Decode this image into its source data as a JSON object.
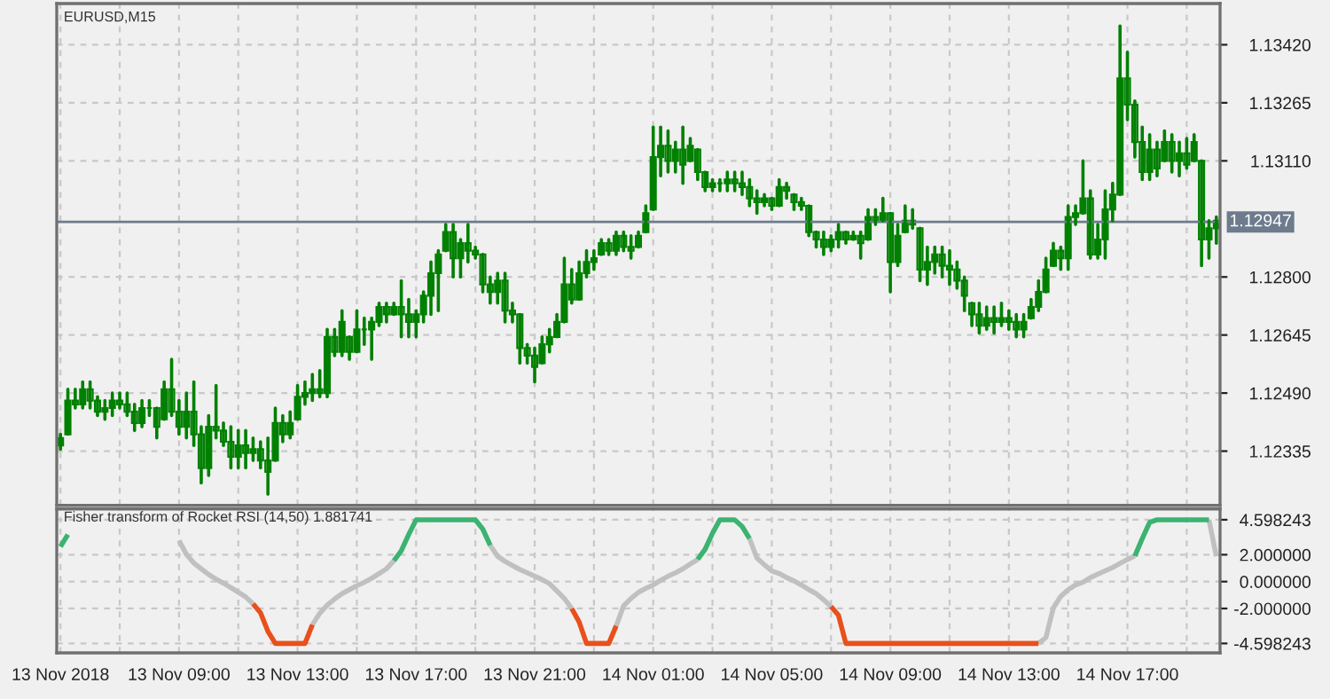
{
  "chart_data": [
    {
      "type": "candlestick",
      "title": "EURUSD,M15",
      "color": "#008000",
      "tick_labels": "y",
      "grid": true,
      "categories": [
        null,
        null,
        null,
        null,
        null,
        null,
        null,
        null,
        null,
        null,
        null,
        null,
        null,
        null,
        null,
        null,
        null,
        null,
        null,
        null,
        null,
        null,
        null,
        null,
        null,
        null,
        null,
        null,
        null,
        null,
        null,
        null,
        null,
        null,
        null,
        null,
        null,
        null,
        null,
        null,
        null,
        null,
        null,
        null,
        null,
        null,
        null,
        null,
        null,
        null,
        null,
        null,
        null,
        null,
        null,
        null,
        null,
        null,
        null,
        null,
        null,
        null,
        null,
        null,
        null,
        null,
        null,
        null,
        null,
        null,
        null,
        null,
        null,
        null,
        null,
        null,
        null,
        null,
        null,
        null,
        null,
        null,
        null,
        null,
        null,
        null,
        null,
        null,
        null,
        null,
        null,
        null,
        null,
        null,
        null,
        null,
        null,
        null,
        null,
        null,
        null,
        null,
        null,
        null,
        null,
        null,
        null,
        null,
        null,
        null,
        null,
        null,
        null,
        null,
        null,
        null,
        null,
        null,
        null,
        null,
        null,
        null,
        null,
        null,
        null,
        null,
        null,
        null,
        null,
        null,
        null,
        null,
        null,
        null,
        null,
        null,
        null,
        null,
        null,
        null,
        null,
        null,
        null,
        null,
        null,
        null,
        null,
        null,
        null,
        null,
        null,
        null,
        null,
        null,
        null,
        null,
        null
      ],
      "ohlc": [
        [
          1.1235,
          1.1238,
          1.1234,
          1.1237
        ],
        [
          1.1238,
          1.125,
          1.1238,
          1.1247
        ],
        [
          1.1247,
          1.125,
          1.1245,
          1.1246
        ],
        [
          1.1246,
          1.1252,
          1.1245,
          1.125
        ],
        [
          1.125,
          1.1252,
          1.1245,
          1.1247
        ],
        [
          1.1247,
          1.1248,
          1.1243,
          1.1244
        ],
        [
          1.1244,
          1.1247,
          1.1242,
          1.1245
        ],
        [
          1.1245,
          1.1249,
          1.1243,
          1.1247
        ],
        [
          1.1247,
          1.1249,
          1.1245,
          1.1246
        ],
        [
          1.1246,
          1.1249,
          1.1243,
          1.1244
        ],
        [
          1.1244,
          1.1246,
          1.1239,
          1.1241
        ],
        [
          1.1241,
          1.1247,
          1.124,
          1.1245
        ],
        [
          1.1245,
          1.1247,
          1.1243,
          1.1245
        ],
        [
          1.1245,
          1.1245,
          1.1237,
          1.124
        ],
        [
          1.1242,
          1.1252,
          1.1242,
          1.125
        ],
        [
          1.125,
          1.1258,
          1.1243,
          1.1244
        ],
        [
          1.1244,
          1.1247,
          1.1238,
          1.124
        ],
        [
          1.124,
          1.1249,
          1.1237,
          1.1244
        ],
        [
          1.1244,
          1.1252,
          1.1235,
          1.1238
        ],
        [
          1.1238,
          1.124,
          1.1225,
          1.1229
        ],
        [
          1.1229,
          1.1243,
          1.1227,
          1.124
        ],
        [
          1.124,
          1.1251,
          1.1237,
          1.1239
        ],
        [
          1.1239,
          1.1241,
          1.1235,
          1.1236
        ],
        [
          1.1236,
          1.124,
          1.1229,
          1.1232
        ],
        [
          1.1232,
          1.1239,
          1.1229,
          1.1235
        ],
        [
          1.1235,
          1.1239,
          1.1229,
          1.1233
        ],
        [
          1.1233,
          1.1237,
          1.1231,
          1.1234
        ],
        [
          1.1234,
          1.1236,
          1.1229,
          1.1231
        ],
        [
          1.1231,
          1.1237,
          1.1222,
          1.1228
        ],
        [
          1.1231,
          1.1245,
          1.1231,
          1.1241
        ],
        [
          1.1241,
          1.1243,
          1.1236,
          1.1238
        ],
        [
          1.1238,
          1.1244,
          1.1237,
          1.1241
        ],
        [
          1.1242,
          1.1251,
          1.1242,
          1.1248
        ],
        [
          1.1248,
          1.1252,
          1.1246,
          1.1249
        ],
        [
          1.1249,
          1.1254,
          1.1247,
          1.125
        ],
        [
          1.125,
          1.1255,
          1.1248,
          1.1249
        ],
        [
          1.1249,
          1.1266,
          1.1248,
          1.1264
        ],
        [
          1.1264,
          1.1266,
          1.1259,
          1.126
        ],
        [
          1.126,
          1.1271,
          1.1259,
          1.1268
        ],
        [
          1.1264,
          1.1264,
          1.1258,
          1.126
        ],
        [
          1.126,
          1.1271,
          1.126,
          1.1266
        ],
        [
          1.1266,
          1.1269,
          1.1262,
          1.1266
        ],
        [
          1.1266,
          1.1269,
          1.1258,
          1.1268
        ],
        [
          1.1268,
          1.1273,
          1.1267,
          1.1272
        ],
        [
          1.1272,
          1.1273,
          1.1268,
          1.127
        ],
        [
          1.127,
          1.1273,
          1.127,
          1.1272
        ],
        [
          1.1272,
          1.1279,
          1.1264,
          1.127
        ],
        [
          1.127,
          1.1274,
          1.1264,
          1.1268
        ],
        [
          1.1268,
          1.1271,
          1.1264,
          1.127
        ],
        [
          1.127,
          1.1276,
          1.1268,
          1.1275
        ],
        [
          1.1275,
          1.1284,
          1.127,
          1.1281
        ],
        [
          1.1281,
          1.1287,
          1.1271,
          1.1286
        ],
        [
          1.1287,
          1.1294,
          1.1287,
          1.1292
        ],
        [
          1.1292,
          1.1294,
          1.128,
          1.1285
        ],
        [
          1.1285,
          1.129,
          1.128,
          1.1289
        ],
        [
          1.1289,
          1.1294,
          1.1284,
          1.1287
        ],
        [
          1.1287,
          1.1288,
          1.1285,
          1.1286
        ],
        [
          1.1286,
          1.1286,
          1.1276,
          1.1278
        ],
        [
          1.1278,
          1.128,
          1.1273,
          1.1276
        ],
        [
          1.1276,
          1.1281,
          1.1273,
          1.1279
        ],
        [
          1.1279,
          1.1281,
          1.1268,
          1.1271
        ],
        [
          1.1271,
          1.1273,
          1.1268,
          1.127
        ],
        [
          1.127,
          1.127,
          1.1257,
          1.1261
        ],
        [
          1.1261,
          1.1262,
          1.1257,
          1.1259
        ],
        [
          1.1259,
          1.1261,
          1.1252,
          1.1256
        ],
        [
          1.1257,
          1.1264,
          1.1257,
          1.1262
        ],
        [
          1.1262,
          1.1266,
          1.126,
          1.1264
        ],
        [
          1.1264,
          1.127,
          1.1264,
          1.1268
        ],
        [
          1.1268,
          1.1285,
          1.1268,
          1.1278
        ],
        [
          1.1278,
          1.1282,
          1.1273,
          1.1274
        ],
        [
          1.1274,
          1.1284,
          1.1274,
          1.1281
        ],
        [
          1.1281,
          1.1287,
          1.128,
          1.1284
        ],
        [
          1.1284,
          1.1287,
          1.1282,
          1.1285
        ],
        [
          1.1286,
          1.129,
          1.1286,
          1.1289
        ],
        [
          1.1289,
          1.129,
          1.1286,
          1.1287
        ],
        [
          1.1287,
          1.1292,
          1.1286,
          1.1291
        ],
        [
          1.1291,
          1.1292,
          1.1287,
          1.1288
        ],
        [
          1.1288,
          1.1291,
          1.1285,
          1.1287
        ],
        [
          1.1288,
          1.1292,
          1.1288,
          1.1291
        ],
        [
          1.1292,
          1.1299,
          1.1292,
          1.1297
        ],
        [
          1.1298,
          1.132,
          1.1298,
          1.1312
        ],
        [
          1.1312,
          1.132,
          1.1307,
          1.1315
        ],
        [
          1.1315,
          1.1319,
          1.1308,
          1.1311
        ],
        [
          1.1311,
          1.1316,
          1.1308,
          1.1314
        ],
        [
          1.1314,
          1.132,
          1.1305,
          1.131
        ],
        [
          1.1311,
          1.1317,
          1.1311,
          1.1315
        ],
        [
          1.1314,
          1.1314,
          1.1306,
          1.1308
        ],
        [
          1.1308,
          1.1308,
          1.1303,
          1.1304
        ],
        [
          1.1304,
          1.1306,
          1.1303,
          1.1305
        ],
        [
          1.1305,
          1.1306,
          1.1303,
          1.1305
        ],
        [
          1.1305,
          1.1308,
          1.1303,
          1.1306
        ],
        [
          1.1306,
          1.1308,
          1.1303,
          1.1305
        ],
        [
          1.1305,
          1.1308,
          1.1302,
          1.1304
        ],
        [
          1.1304,
          1.1306,
          1.1299,
          1.1301
        ],
        [
          1.1301,
          1.1303,
          1.1297,
          1.13
        ],
        [
          1.13,
          1.1302,
          1.1299,
          1.1301
        ],
        [
          1.1301,
          1.1301,
          1.1298,
          1.1299
        ],
        [
          1.1299,
          1.1306,
          1.1299,
          1.1304
        ],
        [
          1.1304,
          1.1305,
          1.1301,
          1.1303
        ],
        [
          1.1302,
          1.1302,
          1.1298,
          1.13
        ],
        [
          1.13,
          1.1301,
          1.1298,
          1.1299
        ],
        [
          1.1299,
          1.1299,
          1.1291,
          1.1292
        ],
        [
          1.1292,
          1.1292,
          1.1288,
          1.129
        ],
        [
          1.129,
          1.1292,
          1.1286,
          1.1288
        ],
        [
          1.1288,
          1.1291,
          1.1287,
          1.129
        ],
        [
          1.129,
          1.1294,
          1.1288,
          1.1292
        ],
        [
          1.1292,
          1.1292,
          1.1289,
          1.129
        ],
        [
          1.129,
          1.1292,
          1.129,
          1.1291
        ],
        [
          1.1291,
          1.1292,
          1.1285,
          1.1289
        ],
        [
          1.129,
          1.1298,
          1.129,
          1.1296
        ],
        [
          1.1296,
          1.1298,
          1.1294,
          1.1295
        ],
        [
          1.1295,
          1.1301,
          1.1295,
          1.1297
        ],
        [
          1.1297,
          1.1297,
          1.1276,
          1.1284
        ],
        [
          1.1284,
          1.1294,
          1.1283,
          1.1291
        ],
        [
          1.1292,
          1.1299,
          1.1292,
          1.1295
        ],
        [
          1.1295,
          1.1298,
          1.1293,
          1.1294
        ],
        [
          1.1293,
          1.1293,
          1.1279,
          1.1282
        ],
        [
          1.1282,
          1.1288,
          1.1278,
          1.1284
        ],
        [
          1.1284,
          1.1288,
          1.1281,
          1.1286
        ],
        [
          1.1286,
          1.1288,
          1.128,
          1.1283
        ],
        [
          1.1283,
          1.1287,
          1.1278,
          1.1282
        ],
        [
          1.1282,
          1.1284,
          1.1277,
          1.1279
        ],
        [
          1.1279,
          1.128,
          1.1271,
          1.1275
        ],
        [
          1.1273,
          1.1273,
          1.1267,
          1.127
        ],
        [
          1.127,
          1.1273,
          1.1265,
          1.1267
        ],
        [
          1.1267,
          1.1272,
          1.1266,
          1.1269
        ],
        [
          1.1269,
          1.1272,
          1.1265,
          1.1268
        ],
        [
          1.1268,
          1.1273,
          1.1267,
          1.1269
        ],
        [
          1.1269,
          1.1271,
          1.1266,
          1.1268
        ],
        [
          1.1268,
          1.127,
          1.1264,
          1.1266
        ],
        [
          1.1266,
          1.127,
          1.1264,
          1.1268
        ],
        [
          1.1269,
          1.1274,
          1.1269,
          1.1272
        ],
        [
          1.1272,
          1.1279,
          1.1271,
          1.1276
        ],
        [
          1.1276,
          1.1285,
          1.1276,
          1.1282
        ],
        [
          1.1283,
          1.1289,
          1.1283,
          1.1287
        ],
        [
          1.1287,
          1.1288,
          1.1282,
          1.1285
        ],
        [
          1.1285,
          1.1299,
          1.1282,
          1.1296
        ],
        [
          1.1296,
          1.1299,
          1.1294,
          1.1297
        ],
        [
          1.1297,
          1.1311,
          1.1297,
          1.1301
        ],
        [
          1.1301,
          1.1303,
          1.1285,
          1.1286
        ],
        [
          1.1286,
          1.1294,
          1.1285,
          1.129
        ],
        [
          1.129,
          1.1303,
          1.1285,
          1.1298
        ],
        [
          1.1298,
          1.1305,
          1.1295,
          1.1302
        ],
        [
          1.1302,
          1.1347,
          1.1302,
          1.1333
        ],
        [
          1.1333,
          1.134,
          1.1322,
          1.1326
        ],
        [
          1.1326,
          1.1327,
          1.1312,
          1.1316
        ],
        [
          1.1316,
          1.132,
          1.1306,
          1.1308
        ],
        [
          1.1308,
          1.1318,
          1.1306,
          1.1314
        ],
        [
          1.1314,
          1.1316,
          1.1307,
          1.1309
        ],
        [
          1.1311,
          1.1319,
          1.1311,
          1.1316
        ],
        [
          1.1316,
          1.1318,
          1.1308,
          1.1311
        ],
        [
          1.1311,
          1.1316,
          1.1307,
          1.1313
        ],
        [
          1.1313,
          1.1317,
          1.1309,
          1.131
        ],
        [
          1.1311,
          1.1318,
          1.1311,
          1.1316
        ],
        [
          1.1311,
          1.1311,
          1.1283,
          1.129
        ],
        [
          1.129,
          1.1295,
          1.1285,
          1.1293
        ],
        [
          1.1293,
          1.1296,
          1.1289,
          1.1295
        ]
      ],
      "ylim": [
        1.1219,
        1.1353
      ],
      "yticks": [
        {
          "value": 1.1342,
          "label": "1.13420"
        },
        {
          "value": 1.13265,
          "label": "1.13265"
        },
        {
          "value": 1.1311,
          "label": "1.13110"
        },
        {
          "value": 1.128,
          "label": "1.12800"
        },
        {
          "value": 1.12645,
          "label": "1.12645"
        },
        {
          "value": 1.1249,
          "label": "1.12490"
        },
        {
          "value": 1.12335,
          "label": "1.12335"
        }
      ],
      "ref_lines": [
        {
          "axis": "y",
          "value": 1.12947,
          "label": "1.12947",
          "color": "#6d7b8d"
        }
      ]
    },
    {
      "type": "line",
      "title": "Fisher transform of Rocket RSI (14,50) 1.881741",
      "grid": true,
      "line_style": "solid",
      "categories": [
        "13 Nov 2018",
        null,
        null,
        null,
        null,
        null,
        null,
        null,
        null,
        null,
        null,
        null,
        null,
        null,
        null,
        null,
        "13 Nov 09:00",
        null,
        null,
        null,
        null,
        null,
        null,
        null,
        null,
        null,
        null,
        null,
        null,
        null,
        null,
        null,
        "13 Nov 13:00",
        null,
        null,
        null,
        null,
        null,
        null,
        null,
        null,
        null,
        null,
        null,
        null,
        null,
        null,
        null,
        "13 Nov 17:00",
        null,
        null,
        null,
        null,
        null,
        null,
        null,
        null,
        null,
        null,
        null,
        null,
        null,
        null,
        null,
        "13 Nov 21:00",
        null,
        null,
        null,
        null,
        null,
        null,
        null,
        null,
        null,
        null,
        null,
        null,
        null,
        null,
        null,
        "14 Nov 01:00",
        null,
        null,
        null,
        null,
        null,
        null,
        null,
        null,
        null,
        null,
        null,
        null,
        null,
        null,
        null,
        "14 Nov 05:00",
        null,
        null,
        null,
        null,
        null,
        null,
        null,
        null,
        null,
        null,
        null,
        null,
        null,
        null,
        null,
        "14 Nov 09:00",
        null,
        null,
        null,
        null,
        null,
        null,
        null,
        null,
        null,
        null,
        null,
        null,
        null,
        null,
        null,
        "14 Nov 13:00",
        null,
        null,
        null,
        null,
        null,
        null,
        null,
        null,
        null,
        null,
        null,
        null,
        null,
        null,
        null,
        "14 Nov 17:00",
        null,
        null,
        null,
        null,
        null,
        null,
        null,
        null,
        null,
        null,
        null,
        null
      ],
      "series": [
        {
          "color": "#c0c0c0",
          "values": [
            null,
            null,
            null,
            null,
            null,
            null,
            null,
            null,
            null,
            null,
            null,
            null,
            null,
            null,
            null,
            null,
            3.05,
            2.03,
            1.38,
            0.95,
            0.53,
            0.18,
            -0.12,
            -0.44,
            -0.79,
            -1.14,
            -1.66,
            null,
            null,
            null,
            null,
            null,
            null,
            null,
            -3.2,
            -2.35,
            -1.75,
            -1.3,
            -0.9,
            -0.6,
            -0.3,
            -0.05,
            0.25,
            0.6,
            0.95,
            1.55,
            null,
            null,
            null,
            null,
            null,
            null,
            null,
            null,
            null,
            null,
            null,
            null,
            2.7,
            1.88,
            1.5,
            1.2,
            0.9,
            0.65,
            0.4,
            0.15,
            -0.15,
            -0.7,
            -1.25,
            -2.0,
            null,
            null,
            null,
            null,
            null,
            -3.3,
            -1.8,
            -1.25,
            -0.8,
            -0.5,
            -0.25,
            0.1,
            0.4,
            0.65,
            0.95,
            1.3,
            1.65,
            null,
            null,
            null,
            null,
            null,
            null,
            3.2,
            1.75,
            1.25,
            0.8,
            0.6,
            0.3,
            0.05,
            -0.25,
            -0.6,
            -0.9,
            -1.35,
            -1.85,
            null,
            null,
            null,
            null,
            null,
            null,
            null,
            null,
            null,
            null,
            null,
            null,
            null,
            null,
            null,
            null,
            null,
            null,
            null,
            null,
            null,
            null,
            null,
            null,
            null,
            null,
            null,
            -4.598243,
            -4.15,
            -1.95,
            -1.1,
            -0.6,
            -0.25,
            -0.05,
            0.3,
            0.55,
            0.8,
            1.05,
            1.35,
            1.65,
            1.9,
            null,
            null,
            null,
            null,
            null,
            null,
            null,
            null,
            null,
            4.598243,
            1.881741
          ]
        },
        {
          "color": "#3cb371",
          "values": [
            2.6,
            3.5,
            null,
            null,
            null,
            null,
            null,
            null,
            null,
            null,
            null,
            null,
            null,
            null,
            null,
            null,
            null,
            null,
            null,
            null,
            null,
            null,
            null,
            null,
            null,
            null,
            null,
            null,
            null,
            null,
            null,
            null,
            null,
            null,
            null,
            null,
            null,
            null,
            null,
            null,
            null,
            null,
            null,
            null,
            null,
            1.55,
            2.3,
            3.5,
            4.598243,
            4.598243,
            4.598243,
            4.598243,
            4.598243,
            4.598243,
            4.598243,
            4.598243,
            4.598243,
            3.9,
            2.7,
            null,
            null,
            null,
            null,
            null,
            null,
            null,
            null,
            null,
            null,
            null,
            null,
            null,
            null,
            null,
            null,
            null,
            null,
            null,
            null,
            null,
            null,
            null,
            null,
            null,
            null,
            null,
            1.65,
            2.4,
            3.6,
            4.598243,
            4.598243,
            4.598243,
            4.1,
            3.2,
            null,
            null,
            null,
            null,
            null,
            null,
            null,
            null,
            null,
            null,
            null,
            null,
            null,
            null,
            null,
            null,
            null,
            null,
            null,
            null,
            null,
            null,
            null,
            null,
            null,
            null,
            null,
            null,
            null,
            null,
            null,
            null,
            null,
            null,
            null,
            null,
            null,
            null,
            null,
            null,
            null,
            null,
            null,
            null,
            null,
            null,
            null,
            null,
            null,
            null,
            null,
            1.9,
            3.2,
            4.4,
            4.598243,
            4.598243,
            4.598243,
            4.598243,
            4.598243,
            4.598243,
            4.598243,
            4.598243,
            null
          ]
        },
        {
          "color": "#e8501c",
          "values": [
            null,
            null,
            null,
            null,
            null,
            null,
            null,
            null,
            null,
            null,
            null,
            null,
            null,
            null,
            null,
            null,
            null,
            null,
            null,
            null,
            null,
            null,
            null,
            null,
            null,
            null,
            -1.66,
            -2.32,
            -3.7,
            -4.598243,
            -4.598243,
            -4.598243,
            -4.598243,
            -4.598243,
            -3.2,
            null,
            null,
            null,
            null,
            null,
            null,
            null,
            null,
            null,
            null,
            null,
            null,
            null,
            null,
            null,
            null,
            null,
            null,
            null,
            null,
            null,
            null,
            null,
            null,
            null,
            null,
            null,
            null,
            null,
            null,
            null,
            null,
            null,
            null,
            -2.0,
            -3.0,
            -4.598243,
            -4.598243,
            -4.598243,
            -4.598243,
            -3.3,
            null,
            null,
            null,
            null,
            null,
            null,
            null,
            null,
            null,
            null,
            null,
            null,
            null,
            null,
            null,
            null,
            null,
            null,
            null,
            null,
            null,
            null,
            null,
            null,
            null,
            null,
            null,
            null,
            -1.85,
            -2.5,
            -4.598243,
            -4.598243,
            -4.598243,
            -4.598243,
            -4.598243,
            -4.598243,
            -4.598243,
            -4.598243,
            -4.598243,
            -4.598243,
            -4.598243,
            -4.598243,
            -4.598243,
            -4.598243,
            -4.598243,
            -4.598243,
            -4.598243,
            -4.598243,
            -4.598243,
            -4.598243,
            -4.598243,
            -4.598243,
            -4.598243,
            -4.598243,
            -4.598243,
            -4.598243,
            -4.598243,
            null,
            null,
            null,
            null,
            null,
            null,
            null,
            null,
            null,
            null,
            null,
            null,
            null,
            null,
            null,
            null,
            null,
            null,
            null,
            null,
            null,
            null,
            null,
            null
          ]
        }
      ],
      "ylim": [
        -5.3,
        5.4
      ],
      "yticks": [
        {
          "value": 4.598243,
          "label": "4.598243"
        },
        {
          "value": 2,
          "label": "2.000000"
        },
        {
          "value": 0,
          "label": "0.000000"
        },
        {
          "value": -2,
          "label": "-2.000000"
        },
        {
          "value": -4.598243,
          "label": "-4.598243"
        }
      ]
    }
  ]
}
